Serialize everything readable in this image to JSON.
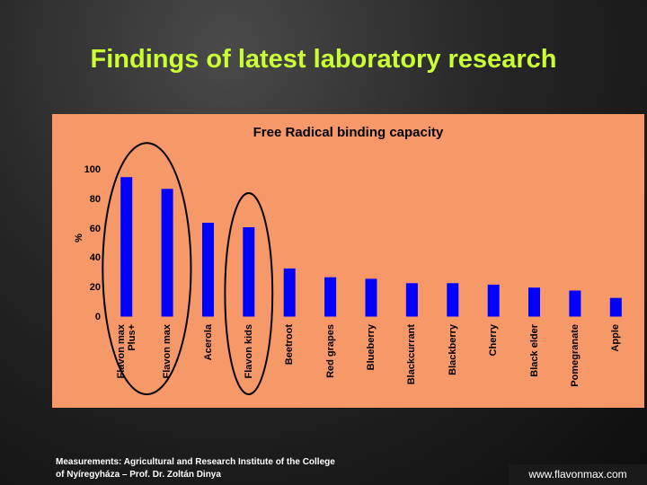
{
  "slide": {
    "title": "Findings of latest laboratory research",
    "footer_line1": "Measurements: Agricultural and Research Institute of the College",
    "footer_line2": "of Nyíregyháza – Prof. Dr. Zoltán Dinya",
    "url": "www.flavonmax.com"
  },
  "colors": {
    "slide_title": "#ccff33",
    "panel_background": "#f79868",
    "bar": "#0000ff",
    "highlight_ellipse": "#000000"
  },
  "chart_data": {
    "type": "bar",
    "title": "Free Radical binding capacity",
    "ylabel": "%",
    "xlabel": "",
    "ylim": [
      0,
      100
    ],
    "yticks": [
      "100",
      "80",
      "60",
      "40",
      "20",
      "0"
    ],
    "yticks_values": [
      100,
      80,
      60,
      40,
      20,
      0
    ],
    "categories": [
      [
        "Flavon max",
        "Plus+"
      ],
      [
        "Flavon max"
      ],
      [
        "Acerola"
      ],
      [
        "Flavon kids"
      ],
      [
        "Beetroot"
      ],
      [
        "Red grapes"
      ],
      [
        "Blueberry"
      ],
      [
        "Blackcurrant"
      ],
      [
        "Blackberry"
      ],
      [
        "Cherry"
      ],
      [
        "Black elder"
      ],
      [
        "Pomegranate"
      ],
      [
        "Apple"
      ]
    ],
    "values": [
      95,
      87,
      64,
      61,
      33,
      27,
      26,
      23,
      23,
      22,
      20,
      18,
      13
    ],
    "highlighted_categories": [
      0,
      1,
      3
    ],
    "grid": false,
    "legend": "none"
  }
}
